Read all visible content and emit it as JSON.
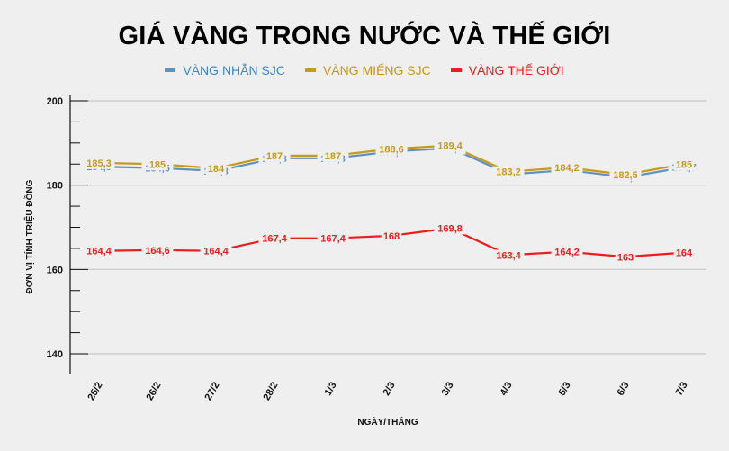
{
  "title": "GIÁ VÀNG TRONG NƯỚC VÀ THẾ GIỚI",
  "legend": [
    {
      "label": "VÀNG NHẪN SJC",
      "color": "#5b93c0",
      "text_color": "#3a86c8"
    },
    {
      "label": "VÀNG MIẾNG SJC",
      "color": "#c79a1c",
      "text_color": "#c49515"
    },
    {
      "label": "VÀNG THẾ GIỚI",
      "color": "#ee1c1c",
      "text_color": "#ee1c1c"
    }
  ],
  "chart_data": {
    "type": "line",
    "title": "GIÁ VÀNG TRONG NƯỚC VÀ THẾ GIỚI",
    "xlabel": "NGÀY/THÁNG",
    "ylabel": "ĐƠN VỊ TÍNH TRIỆU ĐỒNG",
    "ylim": [
      140,
      200
    ],
    "yticks": [
      140,
      160,
      180,
      200
    ],
    "grid": true,
    "legend_position": "top",
    "categories": [
      "25/2",
      "26/2",
      "27/2",
      "28/2",
      "1/3",
      "2/3",
      "3/3",
      "4/3",
      "5/3",
      "6/3",
      "7/3"
    ],
    "series": [
      {
        "name": "VÀNG NHẪN SJC",
        "color": "#5b93c0",
        "values": [
          184.8,
          184.5,
          183.8,
          186.8,
          186.8,
          188.4,
          189.2,
          183.0,
          184.0,
          182.3,
          184.7
        ],
        "labels": [
          "184,8",
          "184,5",
          "183,8",
          "186,8",
          "186,8",
          "188,4",
          "189,2",
          "183",
          "184",
          "182,3",
          "184,7"
        ]
      },
      {
        "name": "VÀNG MIẾNG SJC",
        "color": "#c79a1c",
        "values": [
          185.3,
          185,
          184,
          187,
          187,
          188.6,
          189.4,
          183.2,
          184.2,
          182.5,
          185
        ],
        "labels": [
          "185,3",
          "185",
          "184",
          "187",
          "187",
          "188,6",
          "189,4",
          "183,2",
          "184,2",
          "182,5",
          "185"
        ]
      },
      {
        "name": "VÀNG THẾ GIỚI",
        "color": "#ee1c1c",
        "values": [
          164.4,
          164.6,
          164.4,
          167.4,
          167.4,
          168,
          169.8,
          163.4,
          164.2,
          163,
          164
        ],
        "labels": [
          "164,4",
          "164,6",
          "164,4",
          "167,4",
          "167,4",
          "168",
          "169,8",
          "163,4",
          "164,2",
          "163",
          "164"
        ]
      }
    ]
  }
}
